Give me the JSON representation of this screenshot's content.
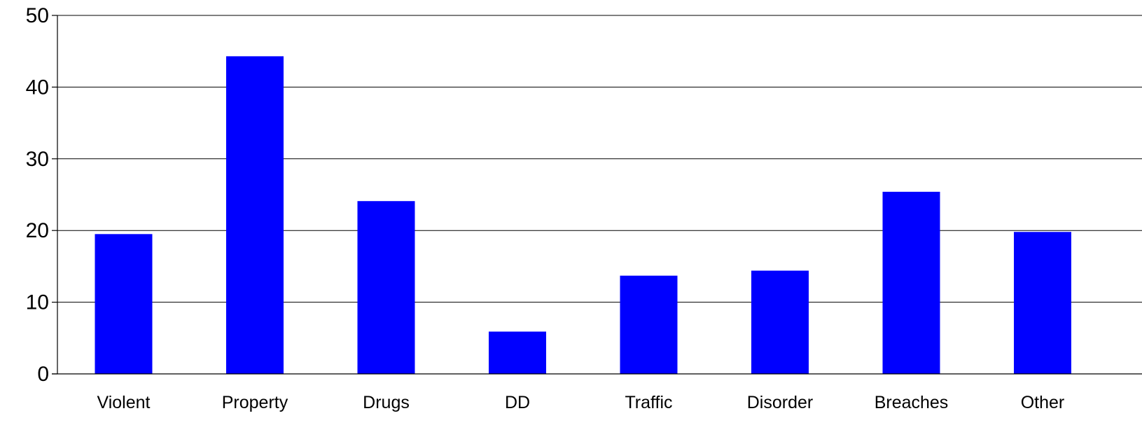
{
  "chart_data": {
    "type": "bar",
    "title": "",
    "xlabel": "",
    "ylabel": "",
    "categories": [
      "Violent",
      "Property",
      "Drugs",
      "DD",
      "Traffic",
      "Disorder",
      "Breaches",
      "Other"
    ],
    "values": [
      19.5,
      44.3,
      24.1,
      5.9,
      13.7,
      14.4,
      25.4,
      19.8
    ],
    "ylim": [
      0,
      50
    ],
    "yticks": [
      0,
      10,
      20,
      30,
      40,
      50
    ],
    "grid": true,
    "legend": "none",
    "bar_color": "#0000FF"
  }
}
